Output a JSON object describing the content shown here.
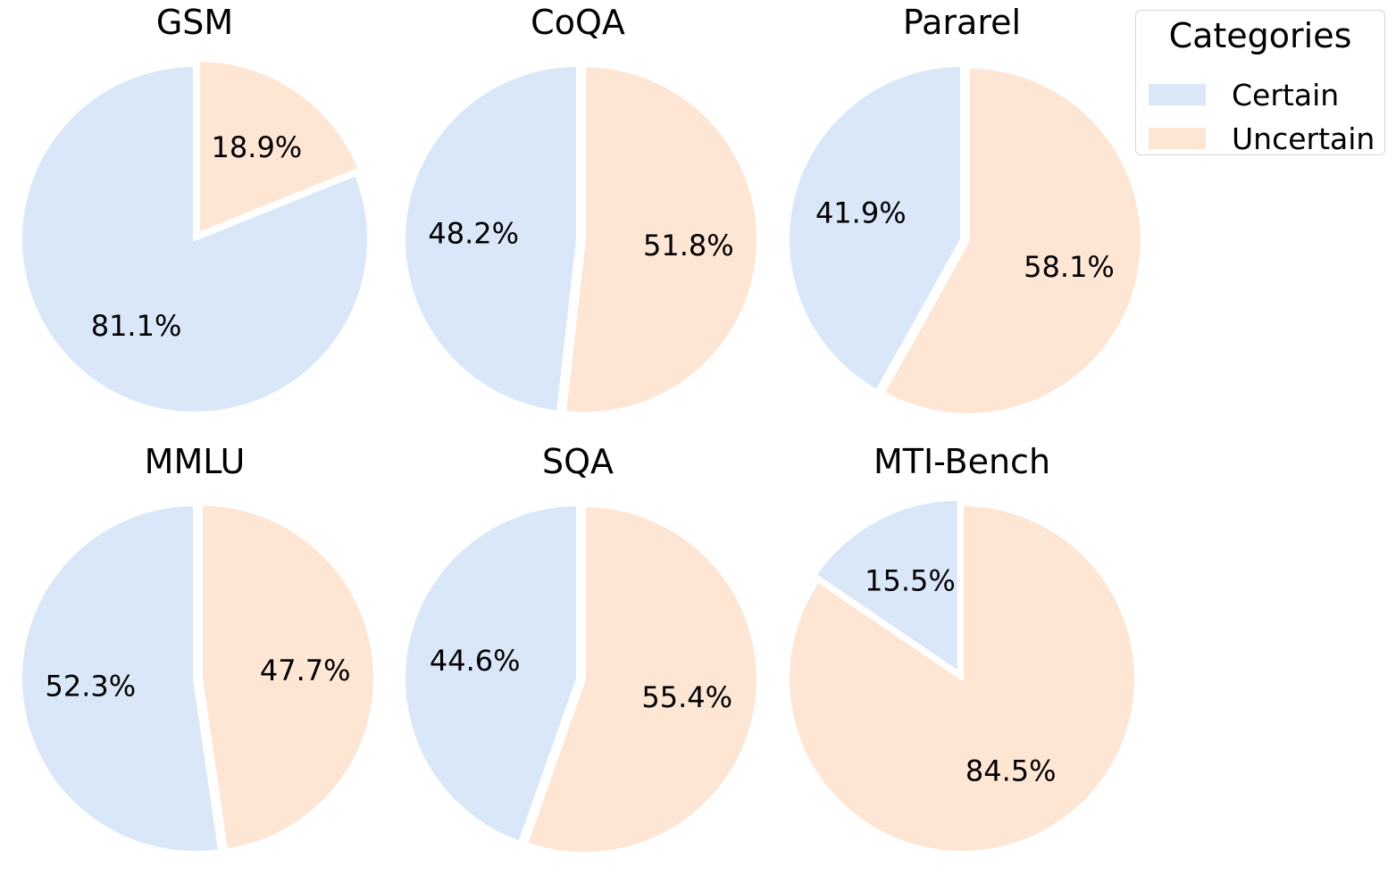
{
  "chart_data": {
    "type": "pie",
    "categories": [
      "Certain",
      "Uncertain"
    ],
    "colors": {
      "Certain": "#d9e7f9",
      "Uncertain": "#fee6d5"
    },
    "legend": {
      "title": "Categories",
      "placement": "top-right"
    },
    "charts": [
      {
        "title": "GSM",
        "values": [
          81.1,
          18.9
        ],
        "labels": [
          "81.1%",
          "18.9%"
        ],
        "exploded": "Uncertain"
      },
      {
        "title": "CoQA",
        "values": [
          48.2,
          51.8
        ],
        "labels": [
          "48.2%",
          "51.8%"
        ],
        "exploded": "Uncertain"
      },
      {
        "title": "Pararel",
        "values": [
          41.9,
          58.1
        ],
        "labels": [
          "41.9%",
          "58.1%"
        ],
        "exploded": "Uncertain"
      },
      {
        "title": "MMLU",
        "values": [
          52.3,
          47.7
        ],
        "labels": [
          "52.3%",
          "47.7%"
        ],
        "exploded": "Uncertain"
      },
      {
        "title": "SQA",
        "values": [
          44.6,
          55.4
        ],
        "labels": [
          "44.6%",
          "55.4%"
        ],
        "exploded": "Uncertain"
      },
      {
        "title": "MTI-Bench",
        "values": [
          15.5,
          84.5
        ],
        "labels": [
          "15.5%",
          "84.5%"
        ],
        "exploded": "Certain"
      }
    ]
  }
}
